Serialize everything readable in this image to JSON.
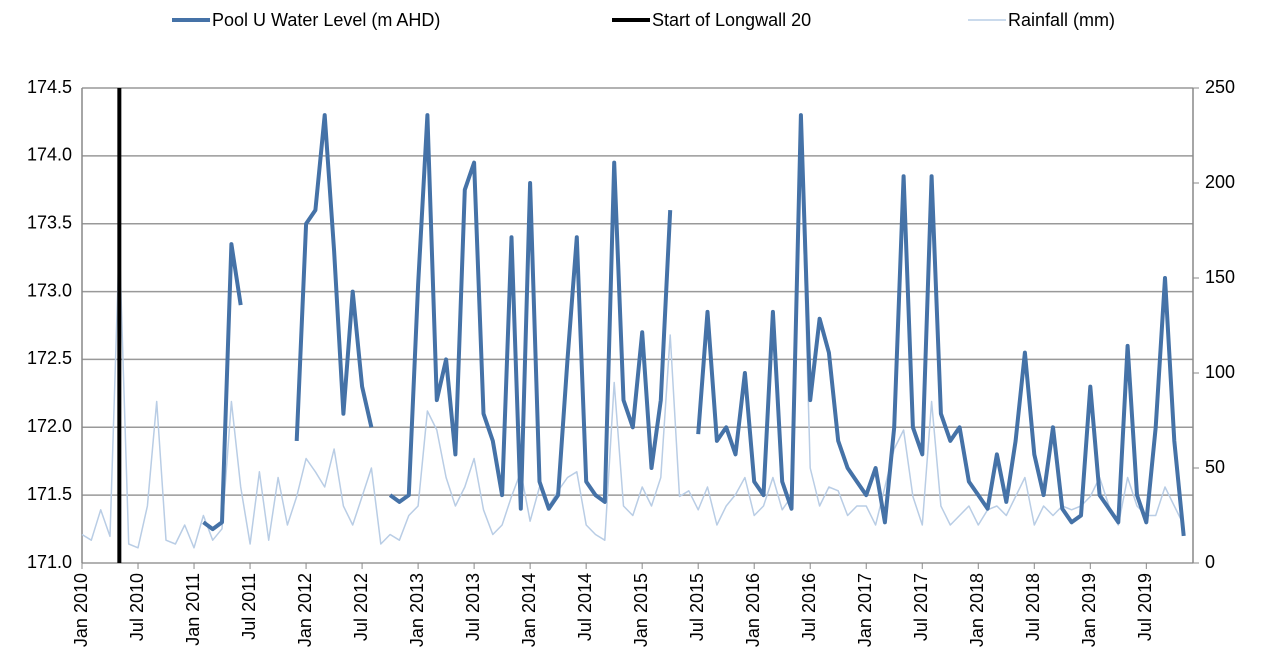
{
  "chart_data": {
    "type": "line",
    "x": [
      "2010-01",
      "2010-02",
      "2010-03",
      "2010-04",
      "2010-05",
      "2010-06",
      "2010-07",
      "2010-08",
      "2010-09",
      "2010-10",
      "2010-11",
      "2010-12",
      "2011-01",
      "2011-02",
      "2011-03",
      "2011-04",
      "2011-05",
      "2011-06",
      "2011-07",
      "2011-08",
      "2011-09",
      "2011-10",
      "2011-11",
      "2011-12",
      "2012-01",
      "2012-02",
      "2012-03",
      "2012-04",
      "2012-05",
      "2012-06",
      "2012-07",
      "2012-08",
      "2012-09",
      "2012-10",
      "2012-11",
      "2012-12",
      "2013-01",
      "2013-02",
      "2013-03",
      "2013-04",
      "2013-05",
      "2013-06",
      "2013-07",
      "2013-08",
      "2013-09",
      "2013-10",
      "2013-11",
      "2013-12",
      "2014-01",
      "2014-02",
      "2014-03",
      "2014-04",
      "2014-05",
      "2014-06",
      "2014-07",
      "2014-08",
      "2014-09",
      "2014-10",
      "2014-11",
      "2014-12",
      "2015-01",
      "2015-02",
      "2015-03",
      "2015-04",
      "2015-05",
      "2015-06",
      "2015-07",
      "2015-08",
      "2015-09",
      "2015-10",
      "2015-11",
      "2015-12",
      "2016-01",
      "2016-02",
      "2016-03",
      "2016-04",
      "2016-05",
      "2016-06",
      "2016-07",
      "2016-08",
      "2016-09",
      "2016-10",
      "2016-11",
      "2016-12",
      "2017-01",
      "2017-02",
      "2017-03",
      "2017-04",
      "2017-05",
      "2017-06",
      "2017-07",
      "2017-08",
      "2017-09",
      "2017-10",
      "2017-11",
      "2017-12",
      "2018-01",
      "2018-02",
      "2018-03",
      "2018-04",
      "2018-05",
      "2018-06",
      "2018-07",
      "2018-08",
      "2018-09",
      "2018-10",
      "2018-11",
      "2018-12",
      "2019-01",
      "2019-02",
      "2019-03",
      "2019-04",
      "2019-05",
      "2019-06",
      "2019-07",
      "2019-08",
      "2019-09",
      "2019-10",
      "2019-11"
    ],
    "series": [
      {
        "name": "Pool U Water Level (m AHD)",
        "color": "#4572a7",
        "axis": "y",
        "values": [
          null,
          null,
          null,
          null,
          null,
          null,
          null,
          null,
          null,
          null,
          null,
          null,
          null,
          171.3,
          171.25,
          171.3,
          173.35,
          172.9,
          null,
          null,
          null,
          null,
          null,
          171.9,
          173.5,
          173.6,
          174.3,
          173.3,
          172.1,
          173.0,
          172.3,
          172.0,
          null,
          171.5,
          171.45,
          171.5,
          173.05,
          174.3,
          172.2,
          172.5,
          171.8,
          173.75,
          173.95,
          172.1,
          171.9,
          171.5,
          173.4,
          171.4,
          173.8,
          171.6,
          171.4,
          171.5,
          172.5,
          173.4,
          171.6,
          171.5,
          171.45,
          173.95,
          172.2,
          172.0,
          172.7,
          171.7,
          172.2,
          173.6,
          null,
          null,
          171.95,
          172.85,
          171.9,
          172.0,
          171.8,
          172.4,
          171.6,
          171.5,
          172.85,
          171.6,
          171.4,
          174.3,
          172.2,
          172.8,
          172.55,
          171.9,
          171.7,
          171.6,
          171.5,
          171.7,
          171.3,
          172.0,
          173.85,
          172.0,
          171.8,
          173.85,
          172.1,
          171.9,
          172.0,
          171.6,
          171.5,
          171.4,
          171.8,
          171.45,
          171.9,
          172.55,
          171.8,
          171.5,
          172.0,
          171.4,
          171.3,
          171.35,
          172.3,
          171.5,
          171.4,
          171.3,
          172.6,
          171.5,
          171.3,
          172.0,
          173.1,
          171.9,
          171.2
        ]
      },
      {
        "name": "Rainfall (mm)",
        "color": "#b9cde5",
        "axis": "y2",
        "values": [
          15,
          12,
          28,
          14,
          170,
          10,
          8,
          30,
          85,
          12,
          10,
          20,
          8,
          25,
          12,
          18,
          85,
          40,
          10,
          48,
          12,
          45,
          20,
          35,
          55,
          48,
          40,
          60,
          30,
          20,
          35,
          50,
          10,
          15,
          12,
          25,
          30,
          80,
          70,
          45,
          30,
          40,
          55,
          28,
          15,
          20,
          35,
          48,
          22,
          40,
          30,
          38,
          45,
          48,
          20,
          15,
          12,
          95,
          30,
          25,
          40,
          30,
          45,
          120,
          35,
          38,
          28,
          40,
          20,
          30,
          36,
          45,
          25,
          30,
          45,
          28,
          35,
          225,
          50,
          30,
          40,
          38,
          25,
          30,
          30,
          20,
          40,
          60,
          70,
          35,
          20,
          85,
          30,
          20,
          25,
          30,
          20,
          28,
          30,
          25,
          35,
          45,
          20,
          30,
          25,
          30,
          28,
          30,
          35,
          45,
          30,
          20,
          45,
          30,
          25,
          25,
          40,
          30,
          20
        ]
      }
    ],
    "event": {
      "name": "Start of Longwall 20",
      "x": "2010-05",
      "color": "#000000"
    },
    "xlim": [
      "2010-01",
      "2019-12"
    ],
    "xticks": [
      {
        "value": "2010-01",
        "label": "Jan 2010"
      },
      {
        "value": "2010-07",
        "label": "Jul 2010"
      },
      {
        "value": "2011-01",
        "label": "Jan 2011"
      },
      {
        "value": "2011-07",
        "label": "Jul 2011"
      },
      {
        "value": "2012-01",
        "label": "Jan 2012"
      },
      {
        "value": "2012-07",
        "label": "Jul 2012"
      },
      {
        "value": "2013-01",
        "label": "Jan 2013"
      },
      {
        "value": "2013-07",
        "label": "Jul 2013"
      },
      {
        "value": "2014-01",
        "label": "Jan 2014"
      },
      {
        "value": "2014-07",
        "label": "Jul 2014"
      },
      {
        "value": "2015-01",
        "label": "Jan 2015"
      },
      {
        "value": "2015-07",
        "label": "Jul 2015"
      },
      {
        "value": "2016-01",
        "label": "Jan 2016"
      },
      {
        "value": "2016-07",
        "label": "Jul 2016"
      },
      {
        "value": "2017-01",
        "label": "Jan 2017"
      },
      {
        "value": "2017-07",
        "label": "Jul 2017"
      },
      {
        "value": "2018-01",
        "label": "Jan 2018"
      },
      {
        "value": "2018-07",
        "label": "Jul 2018"
      },
      {
        "value": "2019-01",
        "label": "Jan 2019"
      },
      {
        "value": "2019-07",
        "label": "Jul 2019"
      }
    ],
    "ylim": [
      171,
      174.5
    ],
    "yticks": [
      {
        "value": 171,
        "label": "171.0"
      },
      171.5,
      {
        "value": 172,
        "label": "172.0"
      },
      172.5,
      {
        "value": 173,
        "label": "173.0"
      },
      173.5,
      {
        "value": 174,
        "label": "174.0"
      },
      174.5
    ],
    "y2lim": [
      0,
      250
    ],
    "y2ticks": [
      0,
      50,
      100,
      150,
      200,
      250
    ],
    "grid": true,
    "legend": "top"
  }
}
